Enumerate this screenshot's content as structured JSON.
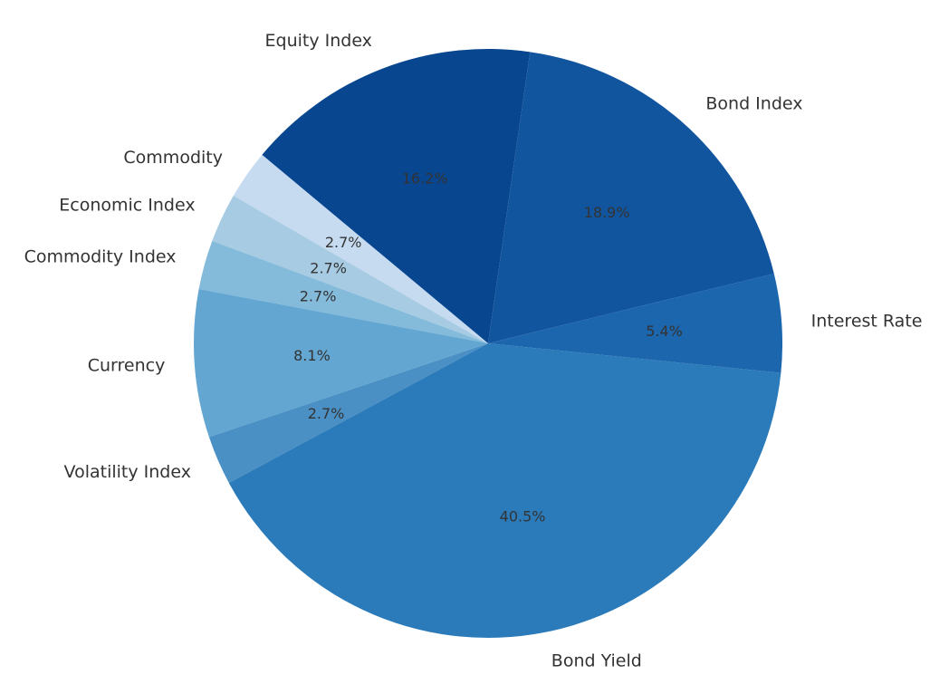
{
  "chart_data": {
    "type": "pie",
    "title": "",
    "direction": "counterclockwise",
    "slices": [
      {
        "label": "Equity Index",
        "value": 16.2,
        "pct_label": "16.2%",
        "color": "#08468f"
      },
      {
        "label": "Commodity",
        "value": 2.7,
        "pct_label": "2.7%",
        "color": "#c6dbef"
      },
      {
        "label": "Economic Index",
        "value": 2.7,
        "pct_label": "2.7%",
        "color": "#a6cbe3"
      },
      {
        "label": "Commodity Index",
        "value": 2.7,
        "pct_label": "2.7%",
        "color": "#84bbdb"
      },
      {
        "label": "Currency",
        "value": 8.1,
        "pct_label": "8.1%",
        "color": "#62a6d1"
      },
      {
        "label": "Volatility Index",
        "value": 2.7,
        "pct_label": "2.7%",
        "color": "#4a90c5"
      },
      {
        "label": "Bond Yield",
        "value": 40.5,
        "pct_label": "40.5%",
        "color": "#2b7bba"
      },
      {
        "label": "Interest Rate",
        "value": 5.4,
        "pct_label": "5.4%",
        "color": "#1c66ae"
      },
      {
        "label": "Bond Index",
        "value": 18.9,
        "pct_label": "18.9%",
        "color": "#11559f"
      }
    ]
  }
}
